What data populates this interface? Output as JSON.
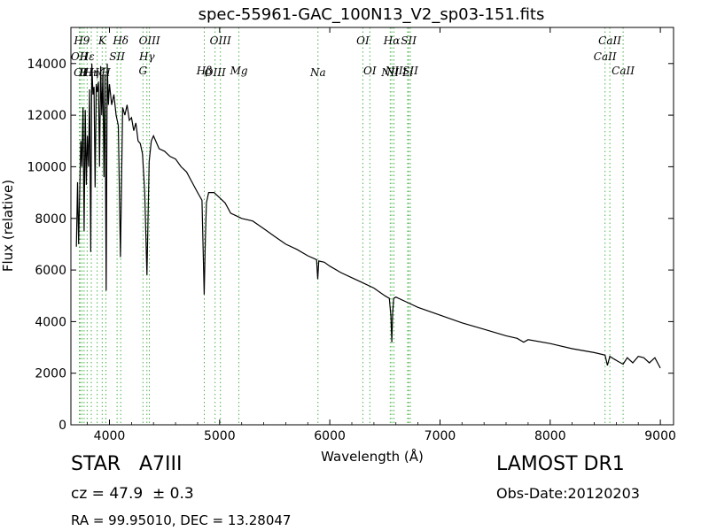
{
  "chart_data": {
    "type": "line",
    "title": "spec-55961-GAC_100N13_V2_sp03-151.fits",
    "xlabel": "Wavelength (Å)",
    "ylabel": "Flux (relative)",
    "xlim": [
      3650,
      9120
    ],
    "ylim": [
      0,
      15400
    ],
    "xticks": [
      4000,
      5000,
      6000,
      7000,
      8000,
      9000
    ],
    "yticks": [
      0,
      2000,
      4000,
      6000,
      8000,
      10000,
      12000,
      14000
    ],
    "grid": false,
    "line_color": "#000000",
    "marker_color": "#33aa33",
    "series": [
      {
        "x": [
          3700,
          3710,
          3720,
          3730,
          3740,
          3750,
          3760,
          3770,
          3780,
          3790,
          3800,
          3810,
          3820,
          3830,
          3840,
          3850,
          3860,
          3870,
          3880,
          3890,
          3900,
          3910,
          3920,
          3930,
          3940,
          3950,
          3960,
          3970,
          3980,
          3990,
          4000,
          4020,
          4040,
          4060,
          4080,
          4100,
          4120,
          4140,
          4160,
          4180,
          4200,
          4220,
          4240,
          4260,
          4280,
          4300,
          4320,
          4340,
          4360,
          4380,
          4400,
          4450,
          4500,
          4550,
          4600,
          4650,
          4700,
          4750,
          4800,
          4840,
          4850,
          4860,
          4870,
          4880,
          4900,
          4950,
          5000,
          5050,
          5100,
          5150,
          5200,
          5300,
          5400,
          5500,
          5600,
          5700,
          5800,
          5880,
          5890,
          5900,
          5950,
          6000,
          6100,
          6200,
          6300,
          6400,
          6500,
          6540,
          6555,
          6563,
          6570,
          6580,
          6600,
          6700,
          6800,
          7000,
          7200,
          7400,
          7600,
          7700,
          7760,
          7800,
          8000,
          8200,
          8400,
          8498,
          8520,
          8542,
          8580,
          8620,
          8662,
          8700,
          8750,
          8800,
          8850,
          8900,
          8950,
          9000
        ],
        "y": [
          6900,
          9400,
          7000,
          9000,
          11000,
          10000,
          12300,
          7500,
          12200,
          9300,
          11200,
          10000,
          13000,
          6700,
          14000,
          12800,
          13100,
          9200,
          13200,
          12900,
          13300,
          10000,
          13900,
          12000,
          13600,
          9600,
          13600,
          5200,
          14000,
          12400,
          13200,
          12400,
          12800,
          12000,
          11600,
          6500,
          12300,
          12000,
          12400,
          11800,
          11900,
          11400,
          11700,
          11000,
          10900,
          10500,
          9000,
          5800,
          10200,
          11000,
          11200,
          10700,
          10600,
          10400,
          10300,
          10000,
          9800,
          9400,
          9000,
          8700,
          6800,
          5050,
          7200,
          8600,
          9000,
          9000,
          8800,
          8600,
          8200,
          8100,
          8000,
          7900,
          7600,
          7300,
          7000,
          6800,
          6550,
          6400,
          5650,
          6350,
          6300,
          6150,
          5900,
          5700,
          5500,
          5300,
          5000,
          4900,
          4200,
          3200,
          4300,
          4900,
          4950,
          4750,
          4550,
          4250,
          3950,
          3700,
          3450,
          3350,
          3200,
          3300,
          3150,
          2950,
          2800,
          2700,
          2300,
          2650,
          2550,
          2450,
          2350,
          2600,
          2400,
          2650,
          2600,
          2400,
          2600,
          2200
        ]
      }
    ],
    "line_markers": [
      {
        "wavelength": 3727,
        "label": "OII",
        "row": 2
      },
      {
        "wavelength": 3734,
        "label": "OI",
        "row": 3
      },
      {
        "wavelength": 3750,
        "label": "H9",
        "row": 1
      },
      {
        "wavelength": 3770,
        "label": "H",
        "row": 3
      },
      {
        "wavelength": 3797,
        "label": "Hε",
        "row": 2
      },
      {
        "wavelength": 3835,
        "label": "Hη",
        "row": 3
      },
      {
        "wavelength": 3889,
        "label": "Hζ",
        "row": 3
      },
      {
        "wavelength": 3934,
        "label": "K",
        "row": 1
      },
      {
        "wavelength": 3968,
        "label": "H",
        "row": 3
      },
      {
        "wavelength": 4069,
        "label": "SII",
        "row": 2
      },
      {
        "wavelength": 4102,
        "label": "Hδ",
        "row": 1
      },
      {
        "wavelength": 4304,
        "label": "G",
        "row": 4
      },
      {
        "wavelength": 4340,
        "label": "Hγ",
        "row": 2
      },
      {
        "wavelength": 4363,
        "label": "OIII",
        "row": 1
      },
      {
        "wavelength": 4861,
        "label": "Hβ",
        "row": 4
      },
      {
        "wavelength": 4959,
        "label": "OIII",
        "row": 3
      },
      {
        "wavelength": 5007,
        "label": "OIII",
        "row": 1
      },
      {
        "wavelength": 5175,
        "label": "Mg",
        "row": 4
      },
      {
        "wavelength": 5893,
        "label": "Na",
        "row": 3
      },
      {
        "wavelength": 6300,
        "label": "OI",
        "row": 1
      },
      {
        "wavelength": 6363,
        "label": "OI",
        "row": 4
      },
      {
        "wavelength": 6548,
        "label": "NII",
        "row": 3
      },
      {
        "wavelength": 6563,
        "label": "Hα",
        "row": 1
      },
      {
        "wavelength": 6583,
        "label": "NII",
        "row": 4
      },
      {
        "wavelength": 6707,
        "label": "Li",
        "row": 3
      },
      {
        "wavelength": 6716,
        "label": "SII",
        "row": 1
      },
      {
        "wavelength": 6731,
        "label": "SII",
        "row": 4
      },
      {
        "wavelength": 8498,
        "label": "CaII",
        "row": 2
      },
      {
        "wavelength": 8542,
        "label": "CaII",
        "row": 1
      },
      {
        "wavelength": 8662,
        "label": "CaII",
        "row": 4
      }
    ]
  },
  "footer": {
    "object_class": "STAR   A7III",
    "survey": "LAMOST DR1",
    "redshift": "cz = 47.9  ± 0.3",
    "obs_date": "Obs-Date:20120203",
    "coords": "RA = 99.95010, DEC = 13.28047"
  }
}
